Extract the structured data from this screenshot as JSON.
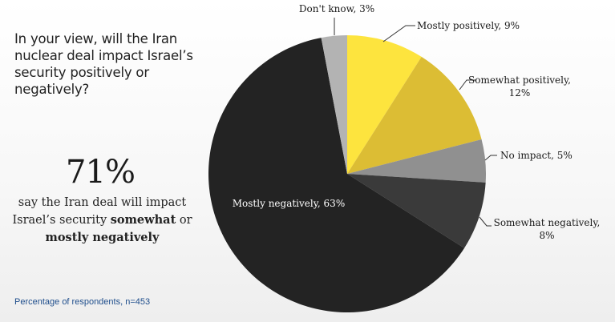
{
  "question": "In your view, will the Iran nuclear deal impact Israel’s security positively or negatively?",
  "headline": {
    "value": "71%",
    "text_parts": [
      "say the Iran deal will impact Israel’s security ",
      "somewhat",
      " or ",
      "mostly negatively"
    ]
  },
  "note": "Percentage of respondents, n=453",
  "chart_data": {
    "type": "pie",
    "title": "In your view, will the Iran nuclear deal impact Israel’s security positively or negatively?",
    "start": "12 o'clock, clockwise",
    "slices": [
      {
        "name": "Mostly positively",
        "value": 9,
        "color": "#fde43e",
        "label_lines": [
          "Mostly positively, 9%"
        ]
      },
      {
        "name": "Somewhat positively",
        "value": 12,
        "color": "#dcbd34",
        "label_lines": [
          "Somewhat positively,",
          "12%"
        ]
      },
      {
        "name": "No impact",
        "value": 5,
        "color": "#909090",
        "label_lines": [
          "No impact, 5%"
        ]
      },
      {
        "name": "Somewhat negatively",
        "value": 8,
        "color": "#3a3a3a",
        "label_lines": [
          "Somewhat negatively,",
          "8%"
        ]
      },
      {
        "name": "Mostly negatively",
        "value": 63,
        "color": "#232323",
        "label_lines": [
          "Mostly negatively, 63%"
        ],
        "label_inside": true
      },
      {
        "name": "Don't know",
        "value": 3,
        "color": "#b3b3b3",
        "label_lines": [
          "Don't know, 3%"
        ]
      }
    ]
  }
}
